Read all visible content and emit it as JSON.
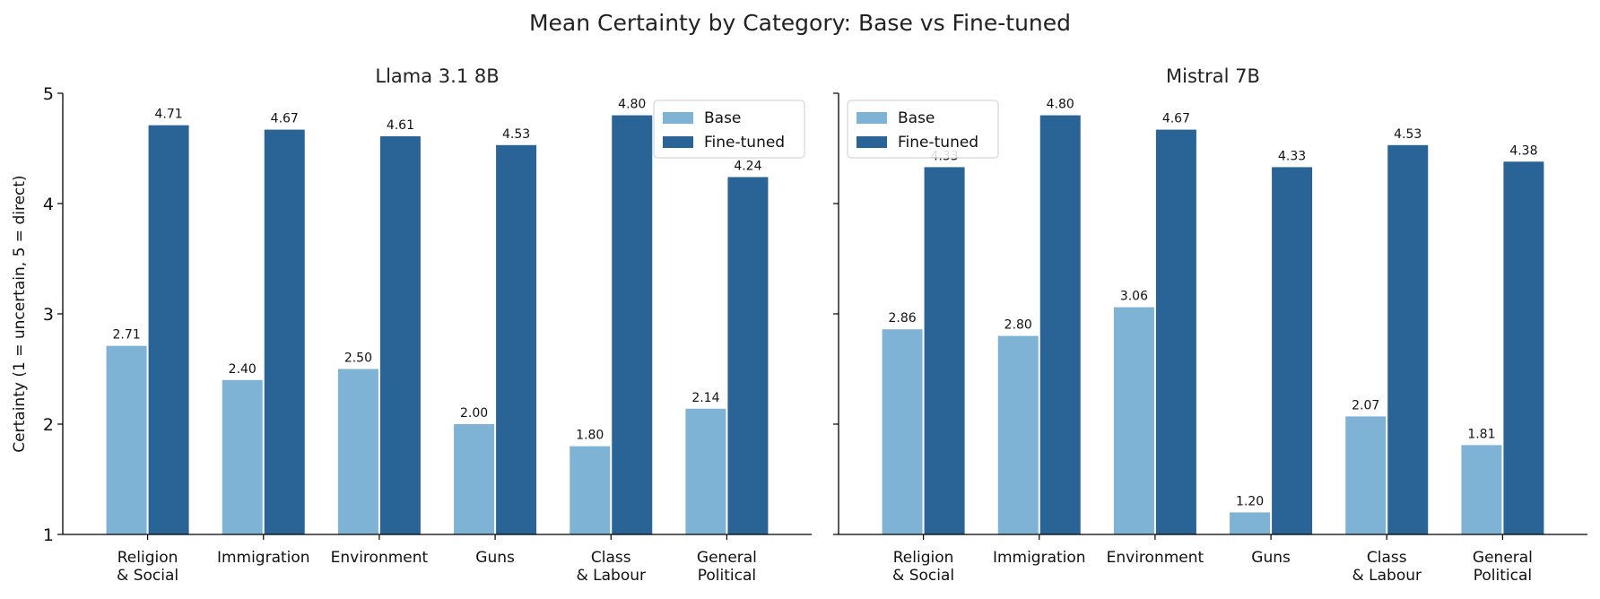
{
  "title": "Mean Certainty by Category: Base vs Fine-tuned",
  "colors": {
    "base": "#7fb3d5",
    "finetuned": "#2a6496"
  },
  "chart_data": [
    {
      "type": "bar",
      "title": "Llama 3.1 8B",
      "ylabel": "Certainty (1 = uncertain, 5 = direct)",
      "ylim": [
        1,
        5
      ],
      "yticks": [
        "1",
        "2",
        "3",
        "4",
        "5"
      ],
      "categories": [
        [
          "Religion",
          "& Social"
        ],
        [
          "Immigration"
        ],
        [
          "Environment"
        ],
        [
          "Guns"
        ],
        [
          "Class",
          "& Labour"
        ],
        [
          "General",
          "Political"
        ]
      ],
      "series": [
        {
          "name": "Base",
          "values": [
            2.71,
            2.4,
            2.5,
            2.0,
            1.8,
            2.14
          ],
          "labels": [
            "2.71",
            "2.40",
            "2.50",
            "2.00",
            "1.80",
            "2.14"
          ]
        },
        {
          "name": "Fine-tuned",
          "values": [
            4.71,
            4.67,
            4.61,
            4.53,
            4.8,
            4.24
          ],
          "labels": [
            "4.71",
            "4.67",
            "4.61",
            "4.53",
            "4.80",
            "4.24"
          ]
        }
      ],
      "legend_position": "top-right",
      "grid": false
    },
    {
      "type": "bar",
      "title": "Mistral 7B",
      "ylabel": "",
      "ylim": [
        1,
        5
      ],
      "yticks": [],
      "categories": [
        [
          "Religion",
          "& Social"
        ],
        [
          "Immigration"
        ],
        [
          "Environment"
        ],
        [
          "Guns"
        ],
        [
          "Class",
          "& Labour"
        ],
        [
          "General",
          "Political"
        ]
      ],
      "series": [
        {
          "name": "Base",
          "values": [
            2.86,
            2.8,
            3.06,
            1.2,
            2.07,
            1.81
          ],
          "labels": [
            "2.86",
            "2.80",
            "3.06",
            "1.20",
            "2.07",
            "1.81"
          ]
        },
        {
          "name": "Fine-tuned",
          "values": [
            4.33,
            4.8,
            4.67,
            4.33,
            4.53,
            4.38
          ],
          "labels": [
            "4.33",
            "4.80",
            "4.67",
            "4.33",
            "4.53",
            "4.38"
          ]
        }
      ],
      "legend_position": "top-left",
      "grid": false
    }
  ]
}
